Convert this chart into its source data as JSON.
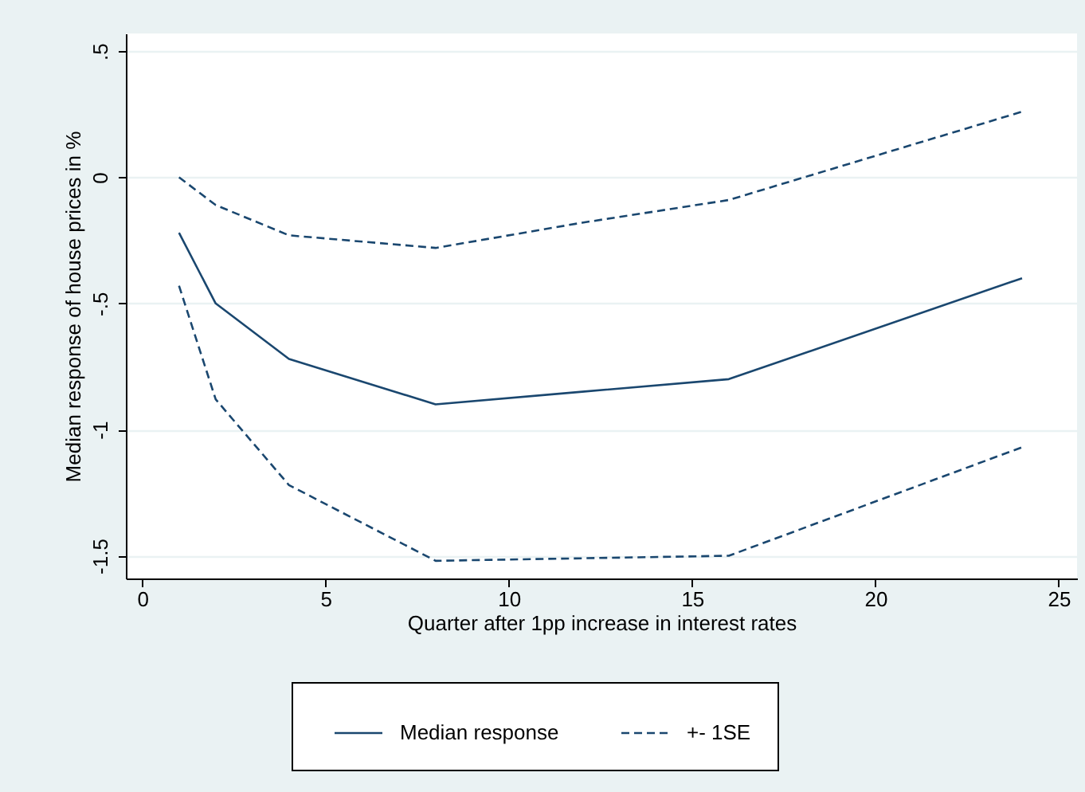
{
  "chart_data": {
    "type": "line",
    "xlabel": "Quarter after 1pp increase in interest rates",
    "ylabel": "Median response of house prices in %",
    "x": [
      1,
      2,
      4,
      8,
      12,
      16,
      24
    ],
    "series": [
      {
        "name": "Median response",
        "color": "#1a476f",
        "line_style": "solid",
        "values": [
          -0.22,
          -0.5,
          -0.72,
          -0.9,
          -0.85,
          -0.8,
          -0.4
        ]
      },
      {
        "name": "+- 1SE",
        "color": "#1a476f",
        "line_style": "dashed",
        "values": [
          0,
          -0.11,
          -0.23,
          -0.28,
          -0.18,
          -0.09,
          0.26
        ]
      },
      {
        "color": "#1a476f",
        "line_style": "dashed",
        "values": [
          -0.43,
          -0.88,
          -1.22,
          -1.52,
          -1.51,
          -1.5,
          -1.07
        ]
      }
    ],
    "xlim": [
      -0.45,
      25.5
    ],
    "xticks": [
      0,
      5,
      10,
      15,
      20,
      25
    ],
    "ylim": [
      -1.59,
      0.57
    ],
    "yticks": [
      {
        "value": -1.5,
        "label": "-1.5"
      },
      -1,
      {
        "value": -0.5,
        "label": "-.5"
      },
      0,
      {
        "value": 0.5,
        "label": ".5"
      }
    ],
    "grid": "y",
    "legend": "bottom"
  }
}
